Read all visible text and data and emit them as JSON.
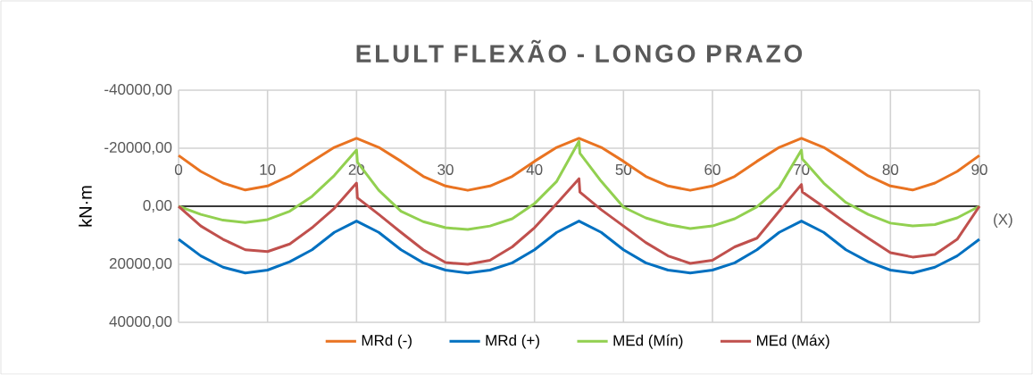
{
  "chart_data": {
    "type": "line",
    "title": "ELULT FLEXÃO - LONGO PRAZO",
    "ylabel": "kN·m",
    "xlabel": "(X)",
    "xlim": [
      0,
      90
    ],
    "xticks": [
      0,
      10,
      20,
      30,
      40,
      50,
      60,
      70,
      80,
      90
    ],
    "ylim": [
      40000,
      -40000
    ],
    "yticks": [
      {
        "value": -40000,
        "label": "-40000,00"
      },
      {
        "value": -20000,
        "label": "-20000,00"
      },
      {
        "value": 0,
        "label": "0,00"
      },
      {
        "value": 20000,
        "label": "20000,00"
      },
      {
        "value": 40000,
        "label": "40000,00"
      }
    ],
    "grid": true,
    "legend": "bottom",
    "marker": "none",
    "line_style": "solid",
    "series": [
      {
        "name": "MRd (-)",
        "color": "#e97321",
        "x": [
          0,
          2.5,
          5,
          7.5,
          10,
          12.5,
          15,
          17.5,
          20,
          22.5,
          25,
          27.5,
          30,
          32.5,
          35,
          37.5,
          40,
          42.5,
          45,
          47.5,
          50,
          52.5,
          55,
          57.5,
          60,
          62.5,
          65,
          67.5,
          70,
          72.5,
          75,
          77.5,
          80,
          82.5,
          85,
          87.5,
          90
        ],
        "values": [
          -17500,
          -12000,
          -8000,
          -5600,
          -7000,
          -10500,
          -15500,
          -20300,
          -23400,
          -20300,
          -15500,
          -10300,
          -7000,
          -5500,
          -7000,
          -10300,
          -15500,
          -20300,
          -23400,
          -20300,
          -15500,
          -10300,
          -7000,
          -5500,
          -7000,
          -10300,
          -15500,
          -20300,
          -23400,
          -20300,
          -15500,
          -10500,
          -7000,
          -5600,
          -8000,
          -12000,
          -17500
        ]
      },
      {
        "name": "MRd (+)",
        "color": "#0070c0",
        "x": [
          0,
          2.5,
          5,
          7.5,
          10,
          12.5,
          15,
          17.5,
          20,
          22.5,
          25,
          27.5,
          30,
          32.5,
          35,
          37.5,
          40,
          42.5,
          45,
          47.5,
          50,
          52.5,
          55,
          57.5,
          60,
          62.5,
          65,
          67.5,
          70,
          72.5,
          75,
          77.5,
          80,
          82.5,
          85,
          87.5,
          90
        ],
        "values": [
          11400,
          17100,
          21000,
          23000,
          22000,
          19100,
          15000,
          9000,
          5100,
          9000,
          15000,
          19500,
          22000,
          23000,
          22000,
          19500,
          15000,
          9000,
          5100,
          9000,
          15000,
          19500,
          22000,
          23000,
          22000,
          19500,
          15000,
          9000,
          5100,
          9000,
          15000,
          19100,
          22000,
          23000,
          21000,
          17100,
          11400
        ]
      },
      {
        "name": "MEd (Mín)",
        "color": "#92d050",
        "x": [
          0,
          2.5,
          5,
          7.5,
          10,
          12.5,
          15,
          17.5,
          20,
          20.1,
          22.5,
          25,
          27.5,
          30,
          32.5,
          35,
          37.5,
          40,
          42.5,
          45,
          45.1,
          47.5,
          50,
          52.5,
          55,
          57.5,
          60,
          62.5,
          65,
          67.5,
          70,
          70.1,
          72.5,
          75,
          77.5,
          80,
          82.5,
          85,
          87.5,
          90
        ],
        "values": [
          0,
          2800,
          4800,
          5600,
          4600,
          1700,
          -3400,
          -10600,
          -19400,
          -15200,
          -5500,
          1700,
          5300,
          7400,
          8000,
          6800,
          4300,
          -900,
          -8600,
          -22400,
          -18300,
          -8600,
          300,
          4000,
          6300,
          7700,
          6800,
          4300,
          200,
          -6500,
          -19400,
          -16300,
          -8000,
          -1300,
          2800,
          5800,
          6800,
          6300,
          4000,
          0
        ]
      },
      {
        "name": "MEd (Máx)",
        "color": "#c0504d",
        "x": [
          0,
          2.5,
          5,
          7.5,
          10,
          12.5,
          15,
          17.5,
          20,
          20.1,
          22.5,
          25,
          27.5,
          30,
          32.5,
          35,
          37.5,
          40,
          42.5,
          45,
          45.1,
          47.5,
          50,
          52.5,
          55,
          57.5,
          60,
          62.5,
          65,
          67.5,
          70,
          70.1,
          72.5,
          75,
          77.5,
          80,
          82.5,
          85,
          87.5,
          90
        ],
        "values": [
          0,
          6800,
          11400,
          15000,
          15600,
          13000,
          7400,
          700,
          -8000,
          -2900,
          2800,
          9000,
          15000,
          19400,
          20000,
          18600,
          14000,
          7400,
          -900,
          -9500,
          -4900,
          1200,
          6800,
          12500,
          17100,
          19700,
          18600,
          14000,
          11000,
          1700,
          -7500,
          -4900,
          200,
          5800,
          11000,
          16000,
          17500,
          16600,
          11400,
          0
        ]
      }
    ]
  }
}
